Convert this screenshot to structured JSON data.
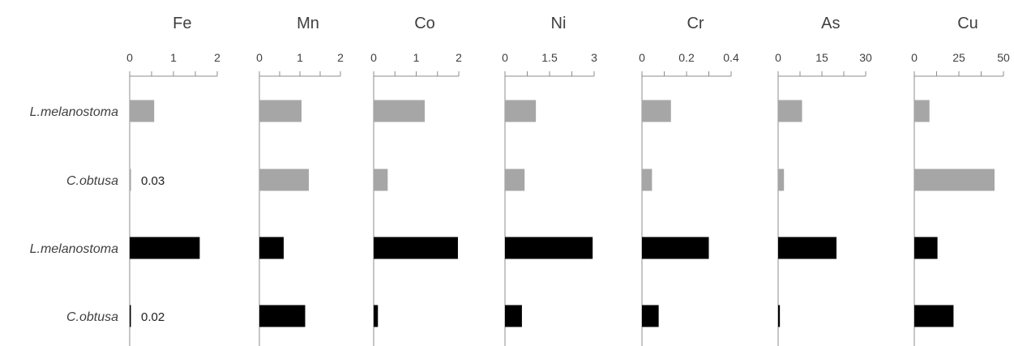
{
  "chart_data": {
    "type": "bar",
    "orientation": "horizontal",
    "categories": [
      "L.melanostoma",
      "C.obtusa",
      "L.melanostoma",
      "C.obtusa"
    ],
    "category_colors": [
      "#a6a6a6",
      "#a6a6a6",
      "#000000",
      "#000000"
    ],
    "panels": [
      {
        "name": "Fe",
        "xlim": [
          0,
          2
        ],
        "ticks": [
          0,
          1,
          2
        ],
        "tick_labels": [
          "0",
          "1",
          "2"
        ],
        "minor_step": 0.5,
        "values": [
          0.56,
          0.03,
          1.6,
          0.02
        ],
        "data_labels": [
          null,
          "0.03",
          null,
          "0.02"
        ]
      },
      {
        "name": "Mn",
        "xlim": [
          0,
          2
        ],
        "ticks": [
          0,
          1,
          2
        ],
        "tick_labels": [
          "0",
          "1",
          "2"
        ],
        "minor_step": 0.5,
        "values": [
          1.04,
          1.22,
          0.6,
          1.13
        ],
        "data_labels": [
          null,
          null,
          null,
          null
        ]
      },
      {
        "name": "Co",
        "xlim": [
          0,
          2
        ],
        "ticks": [
          0,
          1,
          2
        ],
        "tick_labels": [
          "0",
          "1",
          "2"
        ],
        "minor_step": 0.5,
        "values": [
          1.2,
          0.33,
          1.98,
          0.1
        ],
        "data_labels": [
          null,
          null,
          null,
          null
        ]
      },
      {
        "name": "Ni",
        "xlim": [
          0,
          3
        ],
        "ticks": [
          0,
          1.5,
          3
        ],
        "tick_labels": [
          "0",
          "1.5",
          "3"
        ],
        "minor_step": 0.75,
        "values": [
          1.04,
          0.66,
          2.95,
          0.57
        ],
        "data_labels": [
          null,
          null,
          null,
          null
        ]
      },
      {
        "name": "Cr",
        "xlim": [
          0,
          0.4
        ],
        "ticks": [
          0,
          0.2,
          0.4
        ],
        "tick_labels": [
          "0",
          "0.2",
          "0.4"
        ],
        "minor_step": 0.1,
        "values": [
          0.13,
          0.045,
          0.3,
          0.075
        ],
        "data_labels": [
          null,
          null,
          null,
          null
        ]
      },
      {
        "name": "As",
        "xlim": [
          0,
          30
        ],
        "ticks": [
          0,
          15,
          30
        ],
        "tick_labels": [
          "0",
          "15",
          "30"
        ],
        "minor_step": 7.5,
        "values": [
          8.2,
          2.0,
          20.0,
          0.6
        ],
        "data_labels": [
          null,
          null,
          null,
          null
        ]
      },
      {
        "name": "Cu",
        "xlim": [
          0,
          50
        ],
        "ticks": [
          0,
          25,
          50
        ],
        "tick_labels": [
          "0",
          "25",
          "50"
        ],
        "minor_step": 12.5,
        "values": [
          8.5,
          45.0,
          13.0,
          22.0
        ],
        "data_labels": [
          null,
          null,
          null,
          null
        ]
      }
    ],
    "legend": "none",
    "grid": false
  }
}
